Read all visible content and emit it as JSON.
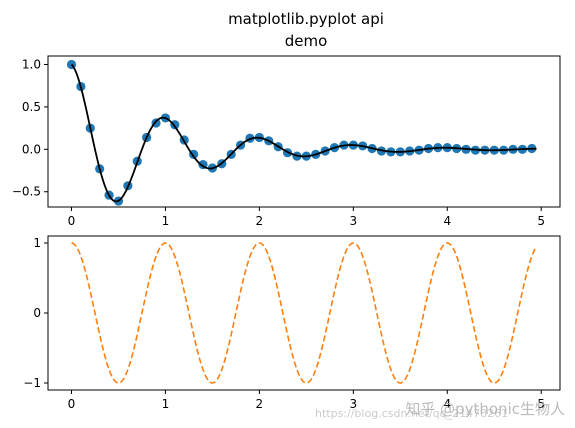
{
  "figure": {
    "title_line_1": "matplotlib.pyplot api",
    "title_line_2": "demo"
  },
  "colors": {
    "scatter": "#1f77b4",
    "line_top": "#000000",
    "line_bottom": "#ff7f0e",
    "axes": "#000000"
  },
  "watermark": {
    "text": "知乎 @pythonic生物人",
    "url": "https://blog.csdn.net/qq_21478261"
  },
  "chart_data": [
    {
      "type": "scatter",
      "title": "",
      "xlabel": "",
      "ylabel": "",
      "xlim": [
        -0.25,
        5.2
      ],
      "ylim": [
        -0.68,
        1.1
      ],
      "xticks": [
        0,
        1,
        2,
        3,
        4,
        5
      ],
      "xticklabels": [
        "0",
        "1",
        "2",
        "3",
        "4",
        "5"
      ],
      "yticks": [
        -0.5,
        0.0,
        0.5,
        1.0
      ],
      "yticklabels": [
        "−0.5",
        "0.0",
        "0.5",
        "1.0"
      ],
      "grid": false,
      "series": [
        {
          "kind": "scatter",
          "x": [
            0.0,
            0.1,
            0.2,
            0.3,
            0.4,
            0.5,
            0.6,
            0.7,
            0.8,
            0.9,
            1.0,
            1.1,
            1.2,
            1.3,
            1.4,
            1.5,
            1.6,
            1.7,
            1.8,
            1.9,
            2.0,
            2.1,
            2.2,
            2.3,
            2.4,
            2.5,
            2.6,
            2.7,
            2.8,
            2.9,
            3.0,
            3.1,
            3.2,
            3.3,
            3.4,
            3.5,
            3.6,
            3.7,
            3.8,
            3.9,
            4.0,
            4.1,
            4.2,
            4.3,
            4.4,
            4.5,
            4.6,
            4.7,
            4.8,
            4.9
          ],
          "y": [
            1.0,
            0.74,
            0.25,
            -0.23,
            -0.54,
            -0.61,
            -0.43,
            -0.14,
            0.14,
            0.31,
            0.37,
            0.29,
            0.11,
            -0.06,
            -0.18,
            -0.22,
            -0.17,
            -0.06,
            0.05,
            0.13,
            0.14,
            0.1,
            0.03,
            -0.04,
            -0.08,
            -0.08,
            -0.06,
            -0.02,
            0.02,
            0.05,
            0.05,
            0.04,
            0.01,
            -0.02,
            -0.03,
            -0.03,
            -0.02,
            -0.01,
            0.01,
            0.02,
            0.02,
            0.01,
            0.0,
            -0.01,
            -0.01,
            -0.01,
            -0.01,
            0.0,
            0.0,
            0.01
          ]
        },
        {
          "kind": "line",
          "function": "exp(-x) * cos(2*pi*x)",
          "x_range": [
            0.0,
            4.95
          ],
          "style": "solid"
        }
      ]
    },
    {
      "type": "line",
      "title": "",
      "xlabel": "",
      "ylabel": "",
      "xlim": [
        -0.25,
        5.2
      ],
      "ylim": [
        -1.1,
        1.1
      ],
      "xticks": [
        0,
        1,
        2,
        3,
        4,
        5
      ],
      "xticklabels": [
        "0",
        "1",
        "2",
        "3",
        "4",
        "5"
      ],
      "yticks": [
        -1,
        0,
        1
      ],
      "yticklabels": [
        "−1",
        "0",
        "1"
      ],
      "grid": false,
      "series": [
        {
          "kind": "line",
          "function": "cos(2*pi*x)",
          "x_range": [
            0.0,
            4.95
          ],
          "style": "dashed"
        }
      ]
    }
  ]
}
